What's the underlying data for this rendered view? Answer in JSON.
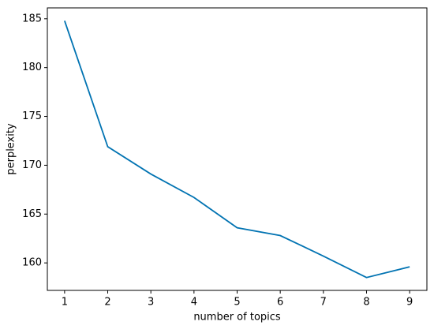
{
  "chart_data": {
    "type": "line",
    "x": [
      1,
      2,
      3,
      4,
      5,
      6,
      7,
      8,
      9
    ],
    "series": [
      {
        "color": "#0173b2",
        "values": [
          184.8,
          171.9,
          169.1,
          166.7,
          163.6,
          162.8,
          160.7,
          158.5,
          159.6
        ]
      }
    ],
    "xlabel": "number of topics",
    "ylabel": "perplexity",
    "xlim": [
      0.6,
      9.4
    ],
    "xticks": [
      1,
      2,
      3,
      4,
      5,
      6,
      7,
      8,
      9
    ],
    "ylim": [
      157.185,
      186.115
    ],
    "yticks": [
      160,
      165,
      170,
      175,
      180,
      185
    ]
  }
}
